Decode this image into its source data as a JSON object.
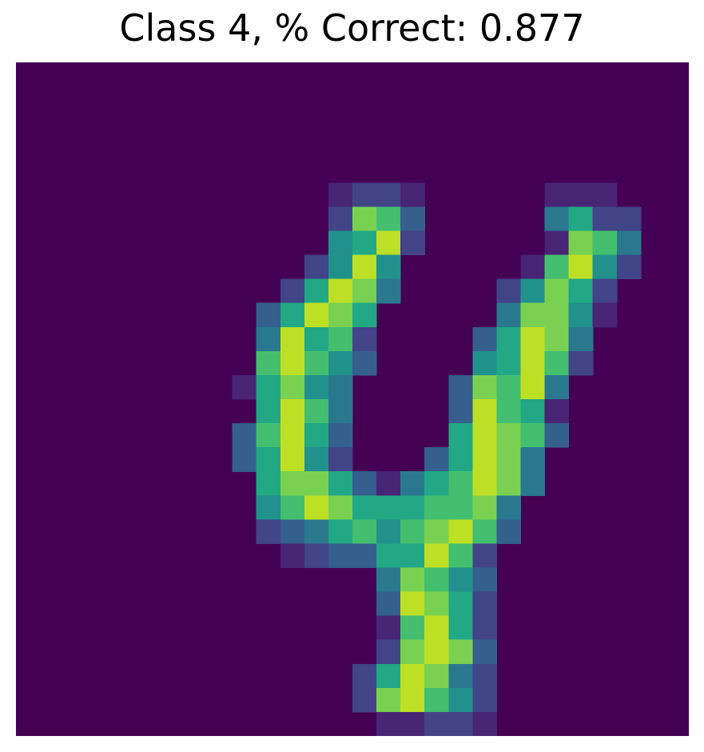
{
  "title": "Class 4, % Correct: 0.877",
  "image": {
    "description_class": 4,
    "accuracy": 0.877,
    "colormap": "viridis",
    "colors": {
      "background": "#440154",
      "palette": [
        "#440154",
        "#482475",
        "#414487",
        "#355f8d",
        "#2a788e",
        "#21918c",
        "#22a884",
        "#44bf70",
        "#7ad151",
        "#bddf26",
        "#fde725"
      ]
    },
    "pixels": [
      "0000000000000000000000000000",
      "0000000000000000000000000000",
      "0000000000000000000000000000",
      "0000000000000000000000000000",
      "0000000000000000000000000000",
      "0000000000000122100000111000",
      "0000000000000287300000462200",
      "0000000000000569200000187400",
      "0000000000002595000001795200",
      "0000000000026984000025862000",
      "0000000000369860000048851000",
      "0000000000496720000369840000",
      "0000000000797530000569720000",
      "0000000001685400003879400000",
      "0000000000697400003976100000",
      "0000000003796300006987300000",
      "0000000003695200036984000000",
      "0000000000688631467984000000",
      "0000000000579866677840000000",
      "0000000000234675789730000000",
      "0000000000012336697200000000",
      "0000000000000004875300000000",
      "0000000000000003986200000000",
      "0000000000000001796200000000",
      "0000000000000002898300000000",
      "0000000000000026984200000000",
      "0000000000000028975200000000",
      "0000000000000001122100000000"
    ]
  }
}
